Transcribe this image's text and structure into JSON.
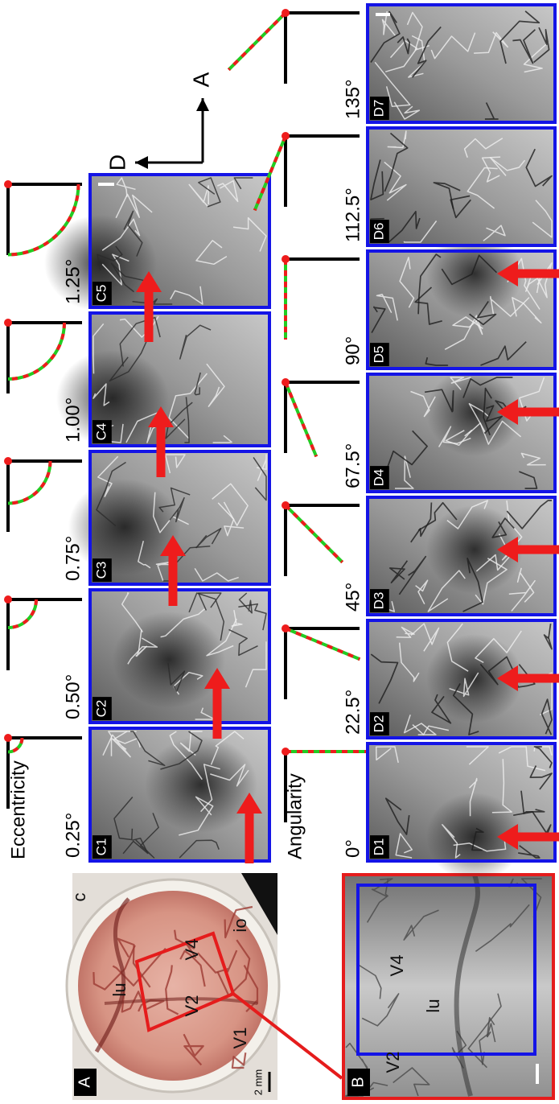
{
  "panel_a": {
    "label": "A",
    "regions": [
      "c",
      "lu",
      "V4",
      "V2",
      "V1",
      "io"
    ],
    "scale_bar": "2 mm"
  },
  "panel_b": {
    "label": "B",
    "regions": [
      "V4",
      "lu",
      "V2"
    ]
  },
  "panel_c": {
    "title": "Eccentricity",
    "panels": [
      "C1",
      "C2",
      "C3",
      "C4",
      "C5"
    ],
    "eccentricity": [
      {
        "value": 0.25,
        "label": "0.25°"
      },
      {
        "value": 0.5,
        "label": "0.50°"
      },
      {
        "value": 0.75,
        "label": "0.75°"
      },
      {
        "value": 1.0,
        "label": "1.00°"
      },
      {
        "value": 1.25,
        "label": "1.25°"
      }
    ]
  },
  "panel_d": {
    "title": "Angularity",
    "panels": [
      "D1",
      "D2",
      "D3",
      "D4",
      "D5",
      "D6",
      "D7"
    ],
    "angle": [
      {
        "value": 0,
        "label": "0°"
      },
      {
        "value": 22.5,
        "label": "22.5°"
      },
      {
        "value": 45,
        "label": "45°"
      },
      {
        "value": 67.5,
        "label": "67.5°"
      },
      {
        "value": 90,
        "label": "90°"
      },
      {
        "value": 112.5,
        "label": "112.5°"
      },
      {
        "value": 135,
        "label": "135°"
      }
    ]
  },
  "orientation": {
    "dorsal": "D",
    "anterior": "A"
  }
}
